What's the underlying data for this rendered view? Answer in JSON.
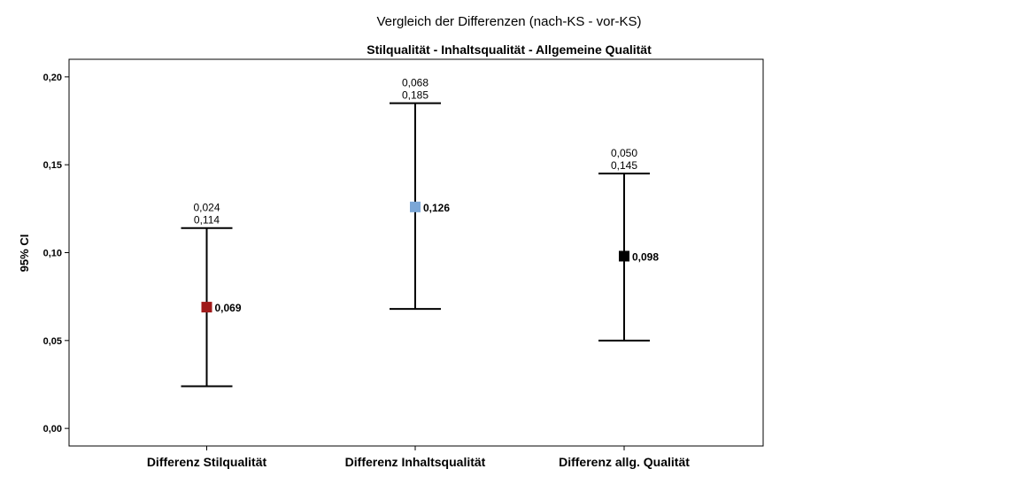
{
  "chart_data": {
    "type": "errorbar",
    "title": "Vergleich der Differenzen (nach-KS - vor-KS)",
    "subtitle": "Stilqualität - Inhaltsqualität - Allgemeine Qualität",
    "ylabel": "95% CI",
    "xlabel": "",
    "ylim": [
      -0.01,
      0.21
    ],
    "yticks": [
      {
        "value": 0.0,
        "label": "0,00"
      },
      {
        "value": 0.05,
        "label": "0,05"
      },
      {
        "value": 0.1,
        "label": "0,10"
      },
      {
        "value": 0.15,
        "label": "0,15"
      },
      {
        "value": 0.2,
        "label": "0,20"
      }
    ],
    "grid": false,
    "categories": [
      "Differenz Stilqualität",
      "Differenz Inhaltsqualität",
      "Differenz allg. Qualität"
    ],
    "series": [
      {
        "values": [
          {
            "lower": 0.024,
            "upper": 0.114,
            "mean": 0.069,
            "lower_label": "0,024",
            "upper_label": "0,114",
            "mean_label": "0,069",
            "color": "#A01A1A"
          },
          {
            "lower": 0.068,
            "upper": 0.185,
            "mean": 0.126,
            "lower_label": "0,068",
            "upper_label": "0,185",
            "mean_label": "0,126",
            "color": "#7BA7D7"
          },
          {
            "lower": 0.05,
            "upper": 0.145,
            "mean": 0.098,
            "lower_label": "0,050",
            "upper_label": "0,145",
            "mean_label": "0,098",
            "color": "#000000"
          }
        ]
      }
    ]
  }
}
